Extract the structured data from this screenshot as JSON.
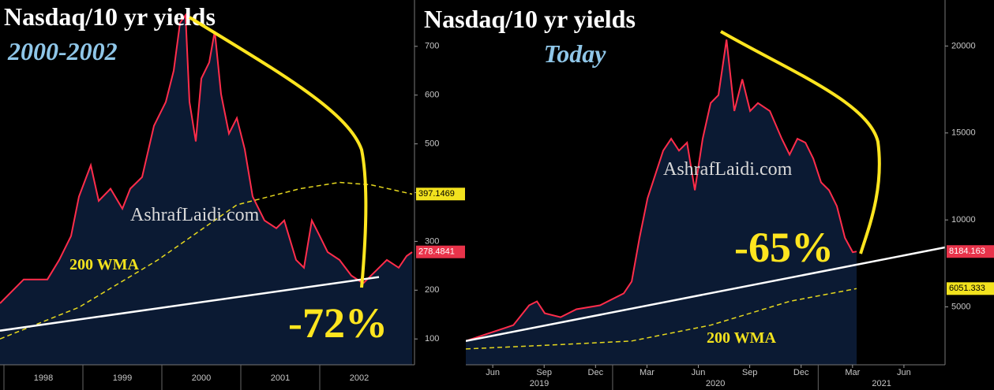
{
  "chart_data": [
    {
      "type": "line",
      "title": "Nasdaq/10 yr yields",
      "subtitle": "2000-2002",
      "annotations": [
        "AshrafLaidi.com",
        "200 WMA",
        "-72%"
      ],
      "xlim": [
        1997.95,
        2003.2
      ],
      "ylim": [
        47,
        795
      ],
      "yticks": [
        100,
        200,
        300,
        400,
        500,
        600,
        700
      ],
      "year_ticks": [
        1998,
        1999,
        2000,
        2001,
        2002
      ],
      "series": [
        {
          "color": "#ff2d4b",
          "fill": "#0b1a33",
          "x": [
            1997.95,
            1998.25,
            1998.55,
            1998.7,
            1998.85,
            1998.95,
            1999.1,
            1999.2,
            1999.35,
            1999.5,
            1999.6,
            1999.75,
            1999.9,
            2000.05,
            2000.15,
            2000.23,
            2000.3,
            2000.35,
            2000.43,
            2000.5,
            2000.6,
            2000.67,
            2000.75,
            2000.85,
            2000.95,
            2001.05,
            2001.15,
            2001.3,
            2001.45,
            2001.55,
            2001.7,
            2001.8,
            2001.9,
            2002.0,
            2002.1,
            2002.25,
            2002.4,
            2002.55,
            2002.7,
            2002.85,
            2003.0,
            2003.1,
            2003.17
          ],
          "values": [
            173,
            222,
            222,
            262,
            311,
            392,
            456,
            383,
            408,
            367,
            408,
            432,
            537,
            586,
            650,
            748,
            764,
            586,
            505,
            634,
            667,
            731,
            602,
            521,
            553,
            489,
            392,
            343,
            327,
            343,
            262,
            246,
            343,
            311,
            278,
            262,
            230,
            214,
            238,
            262,
            246,
            270,
            278
          ]
        },
        {
          "color": "#e6d81e",
          "dash": true,
          "x": [
            1997.95,
            1998.95,
            1999.95,
            2000.95,
            2001.75,
            2002.25,
            2002.65,
            2003.17
          ],
          "values": [
            100,
            165,
            262,
            375,
            408,
            421,
            416,
            397
          ]
        },
        {
          "color": "#ffffff",
          "x": [
            1997.95,
            2002.75
          ],
          "values": [
            117,
            227
          ]
        }
      ],
      "end_values": [
        {
          "value": 397.1469,
          "color": "#f2e21e"
        },
        {
          "value": 278.4841,
          "color": "#e8334a"
        }
      ]
    },
    {
      "type": "line",
      "title": "Nasdaq/10 yr yields",
      "subtitle": "Today",
      "annotations": [
        "AshrafLaidi.com",
        "-65%",
        "200 WMA"
      ],
      "xlim": [
        2019.286,
        2021.617
      ],
      "ylim": [
        1671,
        22645
      ],
      "yticks": [
        5000,
        10000,
        15000,
        20000
      ],
      "xticks": [
        {
          "value": 2019.417,
          "label": "Jun"
        },
        {
          "value": 2019.667,
          "label": "Sep"
        },
        {
          "value": 2019.917,
          "label": "Dec"
        },
        {
          "value": 2020.167,
          "label": "Mar"
        },
        {
          "value": 2020.417,
          "label": "Jun"
        },
        {
          "value": 2020.667,
          "label": "Sep"
        },
        {
          "value": 2020.917,
          "label": "Dec"
        },
        {
          "value": 2021.167,
          "label": "Mar"
        },
        {
          "value": 2021.417,
          "label": "Jun"
        }
      ],
      "year_ticks": [
        2019,
        2020,
        2021
      ],
      "series": [
        {
          "color": "#ff2d4b",
          "fill": "#0b1a33",
          "x": [
            2019.286,
            2019.402,
            2019.517,
            2019.594,
            2019.632,
            2019.67,
            2019.747,
            2019.824,
            2019.939,
            2020.054,
            2020.093,
            2020.131,
            2020.17,
            2020.208,
            2020.246,
            2020.285,
            2020.323,
            2020.362,
            2020.4,
            2020.438,
            2020.477,
            2020.515,
            2020.554,
            2020.592,
            2020.631,
            2020.669,
            2020.707,
            2020.765,
            2020.823,
            2020.861,
            2020.899,
            2020.938,
            2020.976,
            2021.014,
            2021.053,
            2021.091,
            2021.13,
            2021.168,
            2021.187
          ],
          "values": [
            3039,
            3495,
            3951,
            5091,
            5319,
            4635,
            4407,
            4863,
            5091,
            5775,
            6459,
            8967,
            11247,
            12615,
            13983,
            14667,
            13983,
            14439,
            11703,
            14667,
            16719,
            17175,
            20367,
            16263,
            18087,
            16263,
            16719,
            16263,
            14667,
            13755,
            14667,
            14439,
            13527,
            12159,
            11703,
            10791,
            8967,
            8146,
            8184
          ]
        },
        {
          "color": "#e6d81e",
          "dash": true,
          "x": [
            2019.286,
            2019.709,
            2020.093,
            2020.477,
            2020.861,
            2021.187
          ],
          "values": [
            2583,
            2811,
            3039,
            3951,
            5319,
            6051
          ]
        },
        {
          "color": "#ffffff",
          "x": [
            2019.286,
            2021.617
          ],
          "values": [
            3039,
            8420
          ]
        }
      ],
      "end_values": [
        {
          "value": 8184.163,
          "color": "#e8334a"
        },
        {
          "value": 6051.333,
          "color": "#f2e21e"
        }
      ]
    }
  ]
}
